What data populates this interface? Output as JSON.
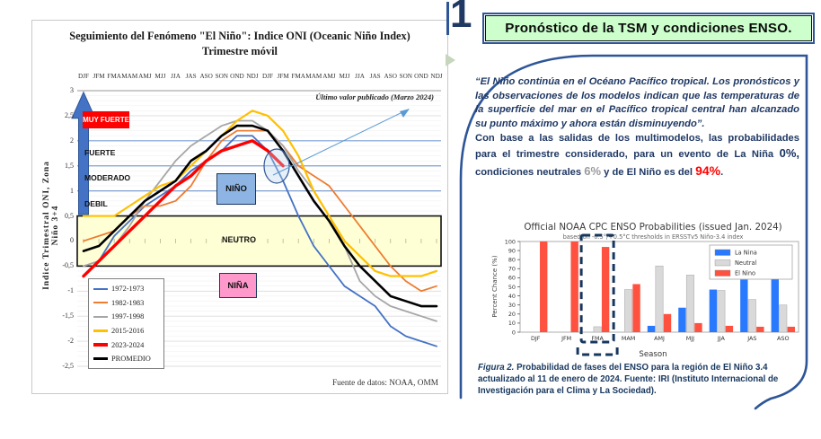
{
  "page": {
    "slide_number": "1"
  },
  "left_figure": {
    "y_axis_title": "Indice Trimestral ONI, Zona Niño 3+4",
    "annotation": "Último valor publicado  (Marzo 2024)",
    "source": "Fuente de datos: NOAA, OMM",
    "zones": {
      "muy_fuerte": "MUY FUERTE",
      "fuerte": "FUERTE",
      "moderado": "MODERADO",
      "debil": "DEBIL",
      "nino": "NIÑO",
      "neutro": "NEUTRO",
      "nina": "NIÑA"
    }
  },
  "right_panel": {
    "header": "Pronóstico de la TSM y condiciones ENSO.",
    "paragraph": {
      "quote": "“El Niño continúa en el Océano Pacífico tropical. Los pronósticos y las observaciones de los modelos indican que las temperaturas de la superficie del mar en el Pacífico tropical central han alcanzado su punto máximo y ahora están disminuyendo”.",
      "cont_1": "Con base a las salidas de los multimodelos, las probabilidades para el trimestre considerado, para un evento de La Niña ",
      "pct_la_nina": "0%,",
      "cont_2": " condiciones neutrales ",
      "pct_neutral": "6%",
      "cont_3": " y de  El Niño es del ",
      "pct_el_nino": "94%",
      "cont_4": "."
    },
    "caption_label": "Figura 2.",
    "caption_text": " Probabilidad de fases del ENSO para la región de El Niño 3.4 actualizado al 11 de enero de 2024. Fuente: IRI (Instituto Internacional de Investigación para el Clima y La Sociedad)."
  },
  "chart_data": [
    {
      "type": "line",
      "title": "Seguimiento del Fenómeno \"El Niño\": Indice ONI (Oceanic Niño Index)",
      "subtitle": "Trimestre móvil",
      "ylabel": "Indice Trimestral ONI, Zona Niño 3+4",
      "ylim": [
        -2.5,
        3
      ],
      "y_tick_values": [
        3,
        2.5,
        2,
        1.5,
        1,
        0.5,
        0,
        -0.5,
        -1,
        -1.5,
        -2,
        -2.5
      ],
      "y_tick_labels": [
        "3",
        "2,5",
        "2",
        "1,5",
        "1",
        "0,5",
        "0",
        "-0,5",
        "-1",
        "-1,5",
        "-2",
        "-2,5"
      ],
      "categories": [
        "DJF",
        "JFM",
        "FMA",
        "MAM",
        "AMJ",
        "MJJ",
        "JJA",
        "JAS",
        "ASO",
        "SON",
        "OND",
        "NDJ",
        "DJF",
        "JFM",
        "FMA",
        "MAM",
        "AMJ",
        "MJJ",
        "JJA",
        "JAS",
        "ASO",
        "SON",
        "OND",
        "NDJ"
      ],
      "neutral_band": [
        -0.5,
        0.5
      ],
      "blue_gridlines": [
        1,
        1.5,
        2
      ],
      "legend_position": "bottom-left",
      "series": [
        {
          "name": "1972-1973",
          "color": "#4472c4",
          "width": 1.8,
          "values": [
            -0.7,
            -0.4,
            0.1,
            0.4,
            0.7,
            0.9,
            1.1,
            1.4,
            1.6,
            1.8,
            2.1,
            2.1,
            1.8,
            1.2,
            0.5,
            -0.1,
            -0.5,
            -0.9,
            -1.1,
            -1.3,
            -1.7,
            -1.9,
            -2.0,
            -2.1
          ]
        },
        {
          "name": "1982-1983",
          "color": "#ed7d31",
          "width": 1.8,
          "values": [
            0.0,
            0.1,
            0.2,
            0.5,
            0.7,
            0.7,
            0.8,
            1.1,
            1.6,
            2.0,
            2.2,
            2.2,
            2.2,
            1.9,
            1.5,
            1.3,
            1.1,
            0.7,
            0.3,
            -0.1,
            -0.5,
            -0.8,
            -1.0,
            -0.9
          ]
        },
        {
          "name": "1997-1998",
          "color": "#a6a6a6",
          "width": 1.8,
          "values": [
            -0.5,
            -0.4,
            -0.1,
            0.3,
            0.8,
            1.2,
            1.6,
            1.9,
            2.1,
            2.3,
            2.4,
            2.4,
            2.2,
            1.9,
            1.4,
            1.0,
            0.5,
            -0.1,
            -0.8,
            -1.1,
            -1.3,
            -1.4,
            -1.5,
            -1.6
          ]
        },
        {
          "name": "2015-2016",
          "color": "#ffc000",
          "width": 2.2,
          "values": [
            0.5,
            0.5,
            0.5,
            0.7,
            0.9,
            1.1,
            1.2,
            1.5,
            1.8,
            2.1,
            2.4,
            2.6,
            2.5,
            2.2,
            1.7,
            1.0,
            0.5,
            0.0,
            -0.3,
            -0.6,
            -0.7,
            -0.7,
            -0.7,
            -0.6
          ]
        },
        {
          "name": "2023-2024",
          "color": "#ff0000",
          "width": 3.4,
          "values": [
            -0.7,
            -0.4,
            -0.1,
            0.2,
            0.5,
            0.8,
            1.1,
            1.3,
            1.6,
            1.8,
            1.9,
            2.0,
            1.8,
            1.5
          ]
        },
        {
          "name": "PROMEDIO",
          "color": "#000000",
          "width": 2.6,
          "values": [
            -0.2,
            -0.1,
            0.2,
            0.5,
            0.8,
            1.0,
            1.2,
            1.6,
            1.8,
            2.1,
            2.3,
            2.3,
            2.2,
            1.8,
            1.3,
            0.8,
            0.4,
            -0.1,
            -0.5,
            -0.8,
            -1.1,
            -1.2,
            -1.3,
            -1.3
          ]
        }
      ]
    },
    {
      "type": "bar",
      "title": "Official NOAA CPC ENSO Probabilities (issued Jan. 2024)",
      "subtitle": "based on -0.5°/+0.5°C thresholds in ERSSTv5 Niño-3.4 index",
      "xlabel": "Season",
      "ylabel": "Percent Chance (%)",
      "ylim": [
        0,
        100
      ],
      "y_ticks": [
        0,
        10,
        20,
        30,
        40,
        50,
        60,
        70,
        80,
        90,
        100
      ],
      "categories": [
        "DJF",
        "JFM",
        "FMA",
        "MAM",
        "AMJ",
        "MJJ",
        "JJA",
        "JAS",
        "ASO"
      ],
      "legend_position": "top-right",
      "highlight_category": "FMA",
      "series": [
        {
          "name": "La Nina",
          "color": "#2979ff",
          "values": [
            0,
            0,
            0,
            0,
            7,
            27,
            47,
            58,
            64
          ]
        },
        {
          "name": "Neutral",
          "color": "#d9d9d9",
          "values": [
            0,
            0,
            6,
            47,
            73,
            63,
            46,
            36,
            30
          ]
        },
        {
          "name": "El Nino",
          "color": "#ff5140",
          "values": [
            100,
            100,
            94,
            53,
            20,
            10,
            7,
            6,
            6
          ]
        }
      ]
    }
  ]
}
